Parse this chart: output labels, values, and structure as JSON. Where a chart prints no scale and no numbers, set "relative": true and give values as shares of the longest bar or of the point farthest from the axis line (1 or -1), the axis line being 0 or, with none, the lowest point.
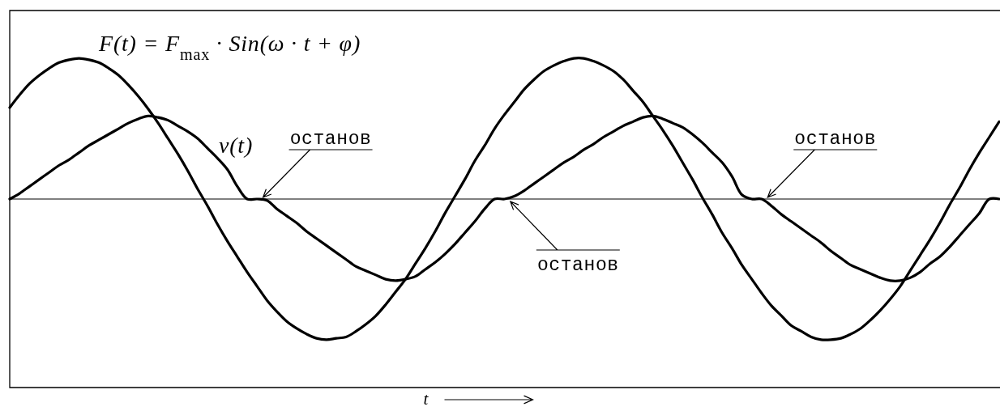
{
  "chart_data": {
    "type": "line",
    "relative": true,
    "line_style": "solid",
    "xlabel": "t",
    "categories": [
      null,
      null,
      null,
      null,
      null,
      null,
      null,
      null,
      null,
      null,
      null,
      null,
      null,
      null,
      null,
      null,
      null,
      null,
      null,
      null,
      null,
      null,
      null,
      null,
      null,
      null,
      null,
      null,
      null,
      null,
      null,
      null,
      null,
      null,
      null,
      null,
      null,
      null,
      null,
      null,
      null,
      null,
      null,
      null,
      null,
      null,
      null,
      null,
      null,
      null,
      null,
      null,
      null,
      null,
      null,
      null,
      null,
      null,
      null,
      null,
      null,
      null,
      null,
      null,
      null,
      null,
      null,
      null,
      null,
      null,
      null,
      null,
      null,
      null,
      null,
      null,
      null,
      null,
      null,
      null,
      null,
      null,
      null,
      null,
      null,
      null,
      null,
      null,
      null,
      null,
      null,
      null,
      null,
      null,
      null,
      null,
      null,
      null,
      null,
      null,
      null
    ],
    "series": [
      {
        "name": "F(t) = F$_{max}$ · Sin(ω · t + φ)",
        "color": "#000000",
        "values": [
          0.65,
          0.74,
          0.82,
          0.88,
          0.93,
          0.97,
          0.99,
          1.0,
          0.99,
          0.97,
          0.93,
          0.88,
          0.81,
          0.73,
          0.64,
          0.54,
          0.43,
          0.32,
          0.2,
          0.07,
          -0.05,
          -0.18,
          -0.3,
          -0.41,
          -0.52,
          -0.62,
          -0.72,
          -0.8,
          -0.87,
          -0.92,
          -0.96,
          -0.99,
          -1.0,
          -0.99,
          -0.98,
          -0.94,
          -0.89,
          -0.83,
          -0.75,
          -0.66,
          -0.57,
          -0.46,
          -0.35,
          -0.23,
          -0.1,
          0.02,
          0.14,
          0.27,
          0.38,
          0.5,
          0.6,
          0.69,
          0.78,
          0.85,
          0.91,
          0.95,
          0.98,
          1.0,
          1.0,
          0.98,
          0.95,
          0.91,
          0.85,
          0.77,
          0.69,
          0.59,
          0.49,
          0.38,
          0.26,
          0.14,
          0.01,
          -0.11,
          -0.24,
          -0.35,
          -0.47,
          -0.57,
          -0.67,
          -0.76,
          -0.83,
          -0.9,
          -0.94,
          -0.98,
          -1.0,
          -1.0,
          -0.99,
          -0.96,
          -0.92,
          -0.86,
          -0.79,
          -0.71,
          -0.62,
          -0.51,
          -0.4,
          -0.29,
          -0.17,
          -0.04,
          0.08,
          0.21,
          0.33,
          0.44,
          0.55
        ]
      },
      {
        "name": "v(t)",
        "color": "#000000",
        "values": [
          0,
          0.04,
          0.09,
          0.14,
          0.19,
          0.24,
          0.28,
          0.33,
          0.38,
          0.42,
          0.46,
          0.5,
          0.54,
          0.57,
          0.59,
          0.58,
          0.56,
          0.52,
          0.48,
          0.43,
          0.36,
          0.29,
          0.21,
          0.09,
          0,
          0,
          -0.01,
          -0.07,
          -0.12,
          -0.17,
          -0.23,
          -0.28,
          -0.33,
          -0.38,
          -0.43,
          -0.48,
          -0.51,
          -0.54,
          -0.57,
          -0.58,
          -0.57,
          -0.55,
          -0.5,
          -0.45,
          -0.39,
          -0.32,
          -0.24,
          -0.16,
          -0.07,
          0,
          0,
          0.02,
          0.06,
          0.11,
          0.16,
          0.21,
          0.26,
          0.3,
          0.35,
          0.39,
          0.44,
          0.48,
          0.52,
          0.55,
          0.58,
          0.59,
          0.57,
          0.54,
          0.51,
          0.46,
          0.4,
          0.33,
          0.26,
          0.16,
          0.03,
          0,
          0,
          -0.05,
          -0.11,
          -0.16,
          -0.21,
          -0.26,
          -0.31,
          -0.37,
          -0.42,
          -0.47,
          -0.5,
          -0.53,
          -0.56,
          -0.58,
          -0.58,
          -0.56,
          -0.52,
          -0.46,
          -0.41,
          -0.34,
          -0.26,
          -0.18,
          -0.1,
          0,
          0
        ]
      }
    ],
    "annotations": [
      "останов",
      "останов",
      "останов"
    ]
  }
}
